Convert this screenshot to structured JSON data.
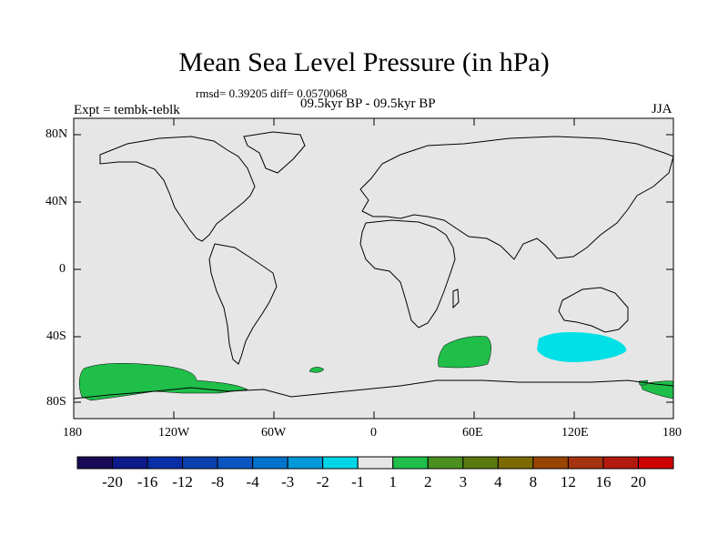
{
  "title": "Mean Sea Level Pressure (in hPa)",
  "stats": "rmsd= 0.39205 diff= 0.0570068",
  "period": "09.5kyr BP - 09.5kyr BP",
  "experiment": "Expt = tembk-teblk",
  "season": "JJA",
  "map": {
    "lat_labels": [
      "80N",
      "40N",
      "0",
      "40S",
      "80S"
    ],
    "lon_labels": [
      "180",
      "120W",
      "60W",
      "0",
      "60E",
      "120E",
      "180"
    ],
    "background_color": "#e6e6e6",
    "positive_anomaly_color": "#1fbf4a",
    "negative_anomaly_color": "#00e0e6"
  },
  "colorbar": {
    "labels": [
      "-20",
      "-16",
      "-12",
      "-8",
      "-4",
      "-3",
      "-2",
      "-1",
      "1",
      "2",
      "3",
      "4",
      "8",
      "12",
      "16",
      "20"
    ],
    "colors": [
      "#1a0a55",
      "#0d1a8a",
      "#0a2ea6",
      "#0a40b0",
      "#0a55bf",
      "#0073cc",
      "#0099d9",
      "#00d6e6",
      "#e6e6e6",
      "#1fbf4a",
      "#4a8f20",
      "#5a7a10",
      "#7a6a00",
      "#994400",
      "#a63310",
      "#b31a0d",
      "#cc0000"
    ]
  }
}
